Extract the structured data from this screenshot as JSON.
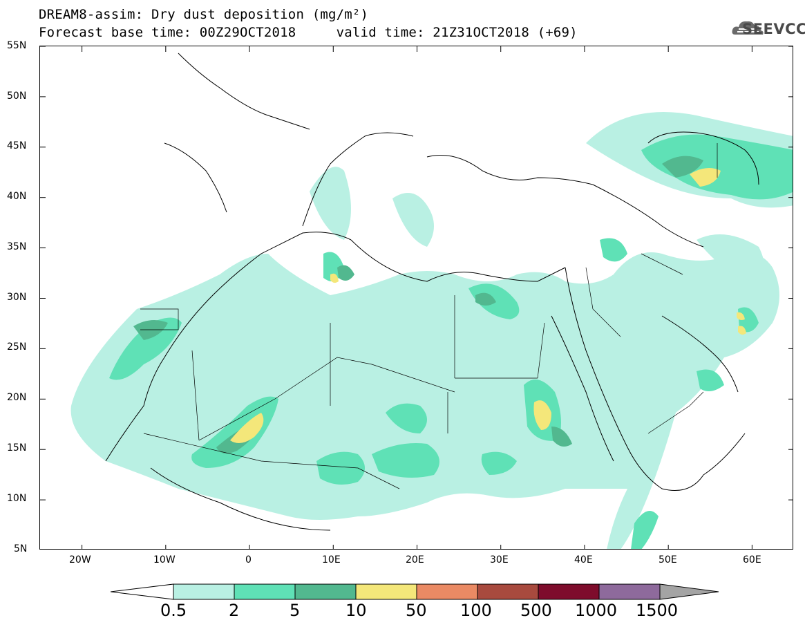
{
  "title": {
    "line1": "DREAM8-assim: Dry dust deposition (mg/m²)",
    "line2": "Forecast base time: 00Z29OCT2018     valid time: 21Z31OCT2018 (+69)"
  },
  "logo": {
    "text": "SEEVCCC",
    "icon": "cloud-icon"
  },
  "map": {
    "lat_labels": [
      "55N",
      "50N",
      "45N",
      "40N",
      "35N",
      "30N",
      "25N",
      "20N",
      "15N",
      "10N",
      "5N"
    ],
    "lon_labels": [
      "20W",
      "10W",
      "0",
      "10E",
      "20E",
      "30E",
      "40E",
      "50E",
      "60E"
    ],
    "lat_range": [
      5,
      55
    ],
    "lon_range": [
      -25,
      65
    ]
  },
  "legend": {
    "labels": [
      "0.5",
      "2",
      "5",
      "10",
      "50",
      "100",
      "500",
      "1000",
      "1500"
    ],
    "colors": [
      "#ffffff",
      "#b9f0e3",
      "#5fe1b6",
      "#52b88f",
      "#f4e77a",
      "#ea8a64",
      "#a84a3e",
      "#7e0c2c",
      "#8e6a9c",
      "#a4a4a4"
    ]
  }
}
